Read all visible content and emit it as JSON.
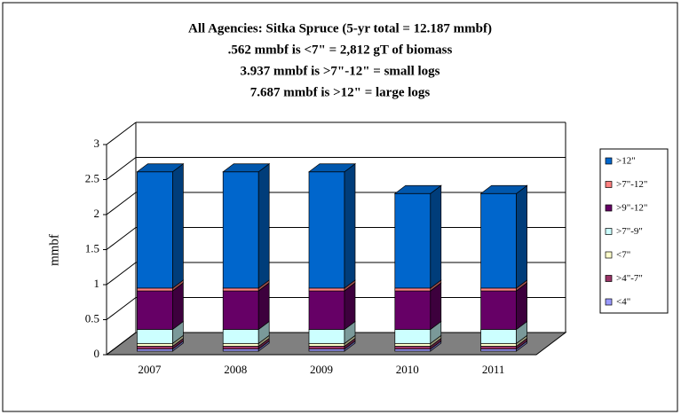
{
  "chart_data": {
    "type": "bar3d_stacked",
    "title": "All Agencies: Sitka Spruce (5-yr total = 12.187 mmbf)",
    "subtitle_lines": [
      ".562 mmbf is <7\" = 2,812 gT of biomass",
      "3.937 mmbf is >7\"-12\" = small logs",
      "7.687 mmbf is >12\" = large logs"
    ],
    "y_label": "mmbf",
    "categories": [
      "2007",
      "2008",
      "2009",
      "2010",
      "2011"
    ],
    "ylim": [
      0,
      3
    ],
    "yticks": [
      0,
      0.5,
      1,
      1.5,
      2,
      2.5,
      3
    ],
    "grid": true,
    "legend": "right",
    "series": [
      {
        "name": "<4\"",
        "color": "#9999ff",
        "values": [
          0.03,
          0.03,
          0.03,
          0.03,
          0.03
        ]
      },
      {
        "name": ">4\"-7\"",
        "color": "#993366",
        "values": [
          0.04,
          0.04,
          0.04,
          0.04,
          0.04
        ]
      },
      {
        "name": "<7\"",
        "color": "#ffffcc",
        "values": [
          0.04,
          0.04,
          0.04,
          0.04,
          0.04
        ]
      },
      {
        "name": ">7\"-9\"",
        "color": "#ccffff",
        "values": [
          0.2,
          0.2,
          0.2,
          0.2,
          0.2
        ]
      },
      {
        "name": ">9\"-12\"",
        "color": "#660066",
        "values": [
          0.55,
          0.55,
          0.55,
          0.55,
          0.55
        ]
      },
      {
        "name": ">7\"-12\"",
        "color": "#ff8080",
        "values": [
          0.04,
          0.04,
          0.04,
          0.04,
          0.04
        ]
      },
      {
        "name": ">12\"",
        "color": "#0066cc",
        "values": [
          1.66,
          1.66,
          1.66,
          1.35,
          1.35
        ]
      }
    ]
  }
}
